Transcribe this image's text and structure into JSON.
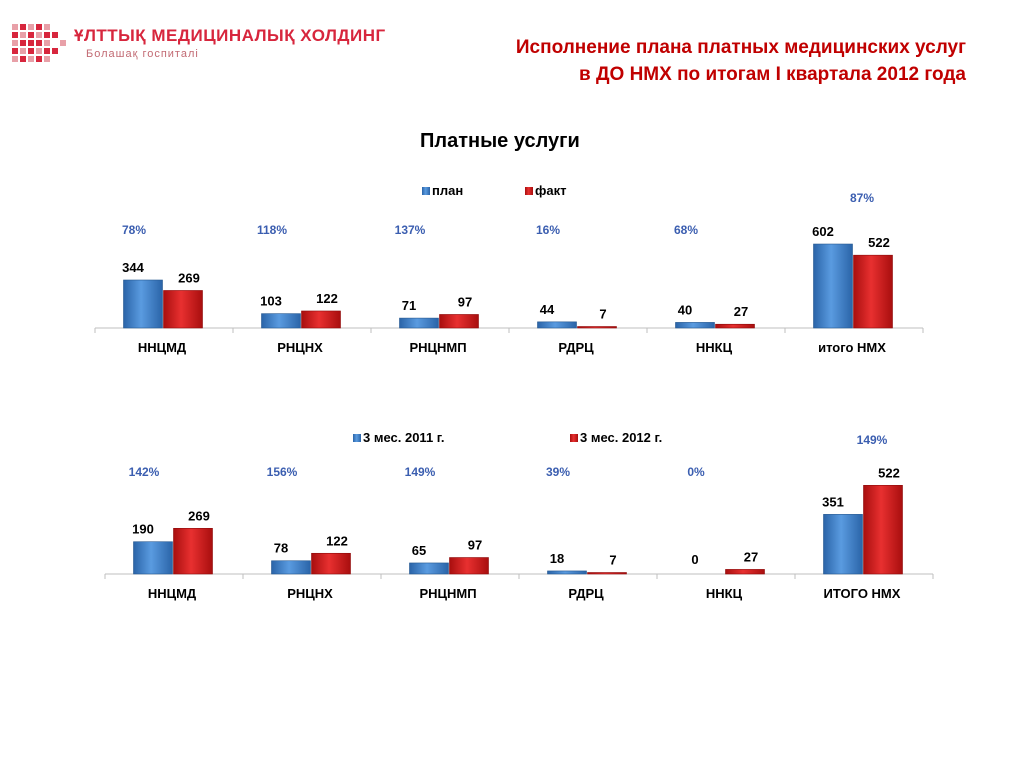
{
  "header": {
    "logo_name": "ҰЛТТЫҚ МЕДИЦИНАЛЫҚ ХОЛДИНГ",
    "logo_tagline": "Болашақ госпиталі",
    "title_line1": "Исполнение плана  платных медицинских услуг",
    "title_line2": "в ДО НМХ по итогам I квартала 2012 года",
    "subtitle": "Платные услуги"
  },
  "colors": {
    "series1": "#3a7cc4",
    "series2": "#d01c1c",
    "title": "#c00000",
    "percent": "#3b5eb0"
  },
  "chart_data": [
    {
      "type": "bar",
      "categories": [
        "ННЦМД",
        "РНЦНХ",
        "РНЦНМП",
        "РДРЦ",
        "ННКЦ",
        "итого НМХ"
      ],
      "series": [
        {
          "name": "план",
          "values": [
            344,
            103,
            71,
            44,
            40,
            602
          ]
        },
        {
          "name": "факт",
          "values": [
            269,
            122,
            97,
            7,
            27,
            522
          ]
        }
      ],
      "percentages": [
        "78%",
        "118%",
        "137%",
        "16%",
        "68%",
        "87%"
      ],
      "legend_position": "top",
      "grid": false
    },
    {
      "type": "bar",
      "categories": [
        "ННЦМД",
        "РНЦНХ",
        "РНЦНМП",
        "РДРЦ",
        "ННКЦ",
        "ИТОГО НМХ"
      ],
      "series": [
        {
          "name": "3 мес. 2011 г.",
          "values": [
            190,
            78,
            65,
            18,
            0,
            351
          ]
        },
        {
          "name": "3 мес. 2012 г.",
          "values": [
            269,
            122,
            97,
            7,
            27,
            522
          ]
        }
      ],
      "percentages": [
        "142%",
        "156%",
        "149%",
        "39%",
        "0%",
        "149%"
      ],
      "legend_position": "top",
      "grid": false
    }
  ]
}
